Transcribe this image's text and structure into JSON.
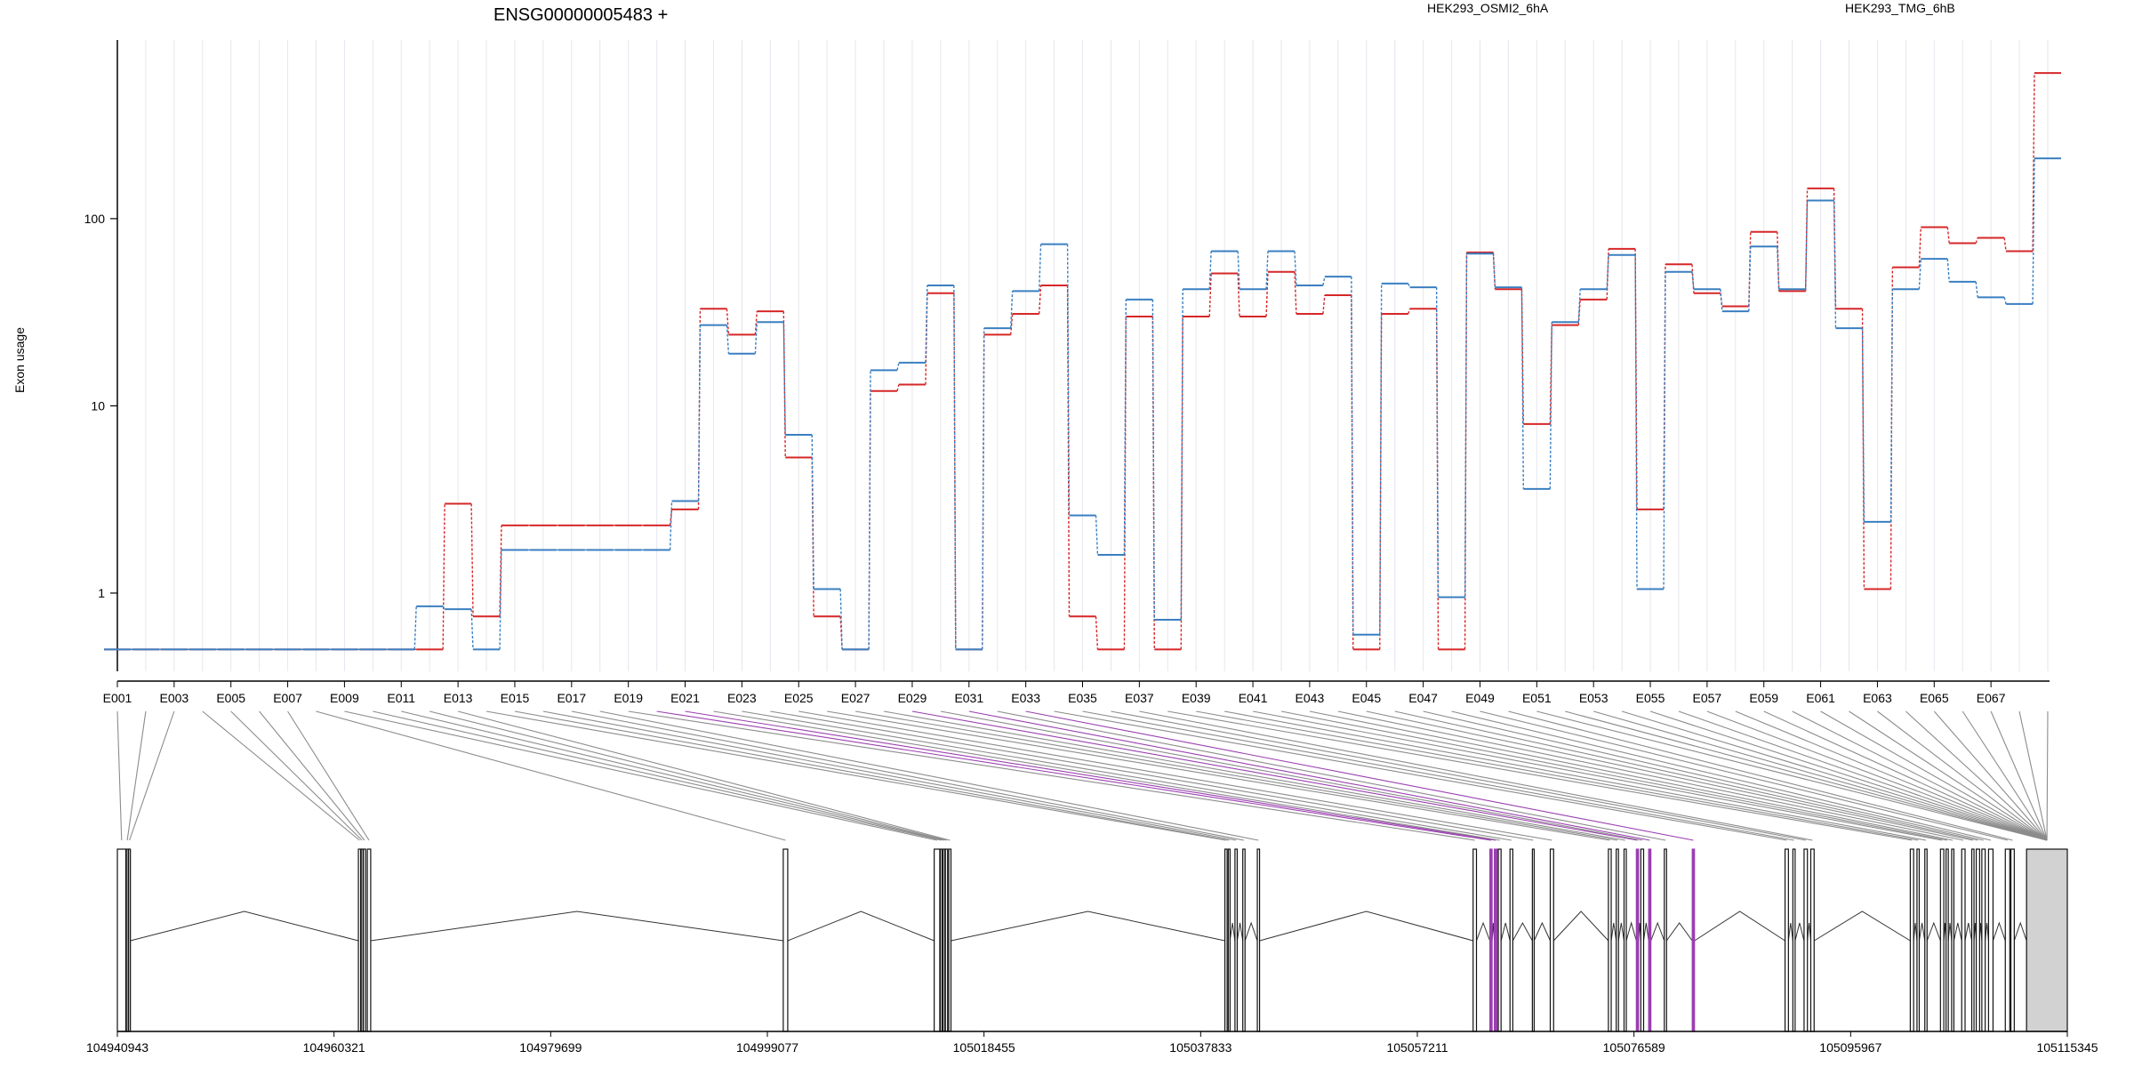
{
  "title": "ENSG00000005483 +",
  "ylabel": "Exon usage",
  "colors": {
    "red": "#d62728",
    "blue": "#3a7fc1",
    "purple": "#9b3fb0",
    "grey": "#8c8c8c",
    "grid": "#e6e6ee"
  },
  "chart_data": {
    "type": "line",
    "scale": "log",
    "ylim": [
      0.45,
      900
    ],
    "yticks": [
      1,
      10,
      100
    ],
    "xlabels": [
      "E001",
      "E003",
      "E005",
      "E007",
      "E009",
      "E011",
      "E013",
      "E015",
      "E017",
      "E019",
      "E021",
      "E023",
      "E025",
      "E027",
      "E029",
      "E031",
      "E033",
      "E035",
      "E037",
      "E039",
      "E041",
      "E043",
      "E045",
      "E047",
      "E049",
      "E051",
      "E053",
      "E055",
      "E057",
      "E059",
      "E061",
      "E063",
      "E065",
      "E067"
    ],
    "series": [
      {
        "name": "HEK293_OSMI2_6hA",
        "color": "#d62728",
        "values": [
          0.5,
          0.5,
          0.5,
          0.5,
          0.5,
          0.5,
          0.5,
          0.5,
          0.5,
          0.5,
          0.5,
          0.5,
          3.0,
          0.75,
          2.3,
          2.3,
          2.3,
          2.3,
          2.3,
          2.3,
          2.8,
          33,
          24,
          32,
          5.3,
          0.75,
          0.5,
          12,
          13,
          40,
          0.5,
          24,
          31,
          44,
          0.75,
          0.5,
          30,
          0.5,
          30,
          51,
          30,
          52,
          31,
          39,
          0.5,
          31,
          33,
          0.5,
          66,
          42,
          8,
          27,
          37,
          69,
          2.8,
          57,
          40,
          34,
          85,
          41,
          145,
          33,
          1.05,
          55,
          90,
          74,
          79,
          67,
          600
        ]
      },
      {
        "name": "HEK293_TMG_6hB",
        "color": "#3a7fc1",
        "values": [
          0.5,
          0.5,
          0.5,
          0.5,
          0.5,
          0.5,
          0.5,
          0.5,
          0.5,
          0.5,
          0.5,
          0.85,
          0.82,
          0.5,
          1.7,
          1.7,
          1.7,
          1.7,
          1.7,
          1.7,
          3.1,
          27,
          19,
          28,
          7,
          1.05,
          0.5,
          15.5,
          17,
          44,
          0.5,
          26,
          41,
          73,
          2.6,
          1.6,
          37,
          0.72,
          42,
          67,
          42,
          67,
          44,
          49,
          0.6,
          45,
          43,
          0.95,
          65,
          43,
          3.6,
          28,
          42,
          64,
          1.05,
          52,
          42,
          32,
          71,
          42,
          125,
          26,
          2.4,
          42,
          61,
          46,
          38,
          35,
          210
        ]
      }
    ],
    "genomic_ticks": [
      "104940943",
      "104960321",
      "104979699",
      "104999077",
      "105018455",
      "105037833",
      "105057211",
      "105076589",
      "105095967",
      "105115345"
    ],
    "genome_range": [
      104940943,
      105115345
    ],
    "exons": [
      [
        104940943,
        104941700
      ],
      [
        104941750,
        104941900
      ],
      [
        104941950,
        104942100
      ],
      [
        104962500,
        104962700
      ],
      [
        104962750,
        104962900
      ],
      [
        104962950,
        104963150
      ],
      [
        104963300,
        104963600
      ],
      [
        105000500,
        105000900
      ],
      [
        105014000,
        105014500
      ],
      [
        105014550,
        105014700
      ],
      [
        105014800,
        105014950
      ],
      [
        105015000,
        105015200
      ],
      [
        105015300,
        105015500
      ],
      [
        105040000,
        105040200
      ],
      [
        105040300,
        105040450
      ],
      [
        105040900,
        105041100
      ],
      [
        105041600,
        105041800
      ],
      [
        105042900,
        105043100
      ],
      [
        105062200,
        105062500
      ],
      [
        105063700,
        105063900
      ],
      [
        105064100,
        105064350
      ],
      [
        105064450,
        105064700
      ],
      [
        105065500,
        105065750
      ],
      [
        105067500,
        105067650
      ],
      [
        105069100,
        105069400
      ],
      [
        105074300,
        105074550
      ],
      [
        105075000,
        105075200
      ],
      [
        105075700,
        105075900
      ],
      [
        105076800,
        105077000
      ],
      [
        105077200,
        105077450
      ],
      [
        105077900,
        105078100
      ],
      [
        105079300,
        105079500
      ],
      [
        105081800,
        105082000
      ],
      [
        105090100,
        105090400
      ],
      [
        105090800,
        105091000
      ],
      [
        105091800,
        105092100
      ],
      [
        105092400,
        105092700
      ],
      [
        105101300,
        105101600
      ],
      [
        105101900,
        105102100
      ],
      [
        105102600,
        105102800
      ],
      [
        105104000,
        105104300
      ],
      [
        105104500,
        105104700
      ],
      [
        105105000,
        105105200
      ],
      [
        105105900,
        105106200
      ],
      [
        105106800,
        105107000
      ],
      [
        105107200,
        105107500
      ],
      [
        105107700,
        105108000
      ],
      [
        105108300,
        105108700
      ],
      [
        105109800,
        105110200
      ],
      [
        105110300,
        105110600
      ],
      [
        105111700,
        105115345
      ]
    ],
    "highlighted_exons": [
      19,
      20,
      28,
      30,
      32
    ],
    "wide_exons": [
      50
    ]
  }
}
